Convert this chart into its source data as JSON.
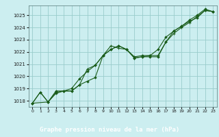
{
  "title": "Graphe pression niveau de la mer (hPa)",
  "bg_color": "#cceef0",
  "plot_bg_color": "#cceef0",
  "label_bg_color": "#1a6b1a",
  "label_text_color": "#ffffff",
  "grid_color": "#99cccc",
  "line_color": "#1a5c1a",
  "marker_color": "#1a5c1a",
  "xlim": [
    -0.5,
    23.5
  ],
  "ylim": [
    1017.5,
    1025.8
  ],
  "yticks": [
    1018,
    1019,
    1020,
    1021,
    1022,
    1023,
    1024,
    1025
  ],
  "xticks": [
    0,
    1,
    2,
    3,
    4,
    5,
    6,
    7,
    8,
    9,
    10,
    11,
    12,
    13,
    14,
    15,
    16,
    17,
    18,
    19,
    20,
    21,
    22,
    23
  ],
  "series1_x": [
    0,
    1,
    2,
    3,
    4,
    5,
    6,
    7,
    8,
    9,
    10,
    11,
    12,
    13,
    14,
    15,
    16,
    17,
    18,
    19,
    20,
    21,
    22,
    23
  ],
  "series1_y": [
    1017.8,
    1018.7,
    1017.9,
    1018.6,
    1018.8,
    1018.8,
    1019.3,
    1019.6,
    1019.9,
    1021.7,
    1022.2,
    1022.5,
    1022.2,
    1021.5,
    1021.6,
    1021.6,
    1021.6,
    1022.8,
    1023.7,
    1024.1,
    1024.5,
    1024.8,
    1025.4,
    1025.3
  ],
  "series2_x": [
    0,
    1,
    2,
    3,
    4,
    5,
    6,
    7,
    8,
    9,
    10,
    11,
    12,
    13,
    14,
    15,
    16,
    17,
    18,
    19,
    20,
    21,
    22,
    23
  ],
  "series2_y": [
    1017.8,
    1018.7,
    1017.9,
    1018.8,
    1018.8,
    1019.0,
    1019.8,
    1020.4,
    1020.9,
    1021.7,
    1022.2,
    1022.5,
    1022.2,
    1021.6,
    1021.7,
    1021.7,
    1022.2,
    1023.2,
    1023.7,
    1024.1,
    1024.6,
    1025.0,
    1025.5,
    1025.3
  ],
  "series3_x": [
    0,
    2,
    3,
    4,
    5,
    6,
    7,
    8,
    9,
    10,
    11,
    12,
    13,
    14,
    15,
    16,
    17,
    18,
    19,
    20,
    21,
    22,
    23
  ],
  "series3_y": [
    1017.8,
    1017.9,
    1018.7,
    1018.8,
    1018.8,
    1019.3,
    1020.6,
    1020.9,
    1021.7,
    1022.5,
    1022.3,
    1022.2,
    1021.5,
    1021.6,
    1021.7,
    1021.7,
    1022.8,
    1023.5,
    1024.0,
    1024.4,
    1024.9,
    1025.4,
    1025.3
  ]
}
